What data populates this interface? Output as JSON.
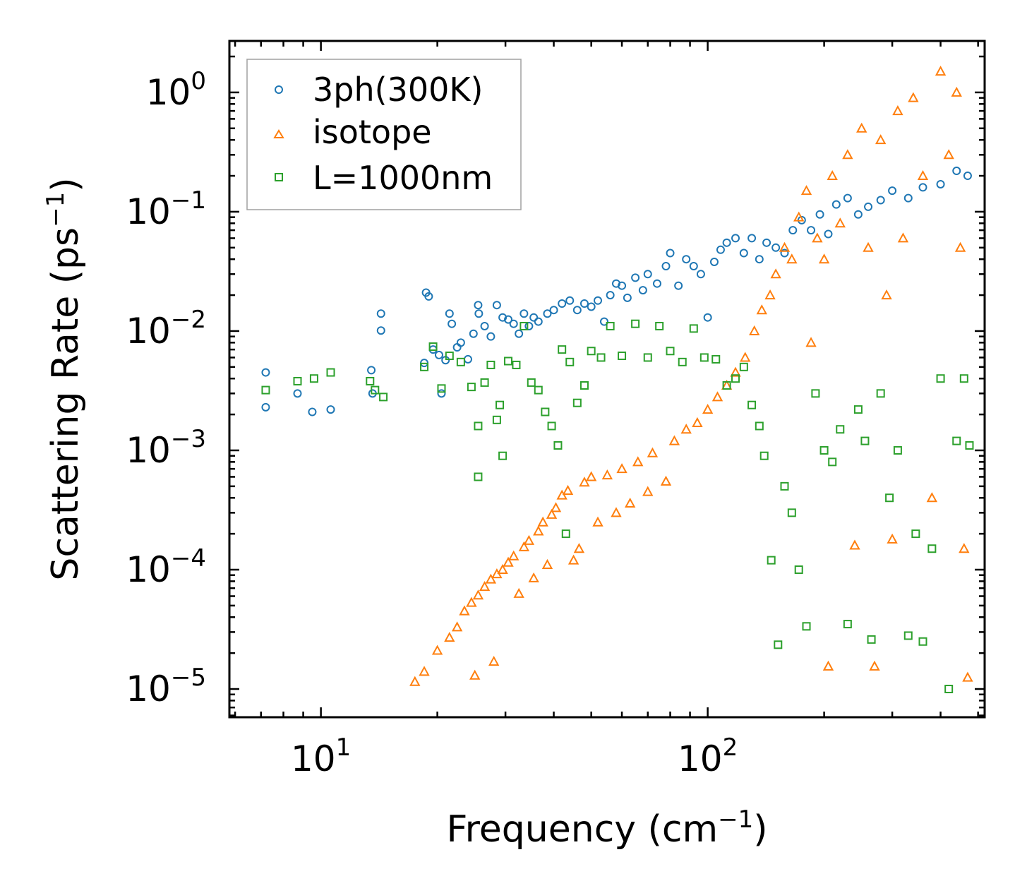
{
  "chart_data": {
    "type": "scatter",
    "title": "",
    "xlabel": {
      "base": "Frequency (cm",
      "exp": "−1",
      "tail": ")"
    },
    "ylabel": {
      "base": "Scattering Rate (ps",
      "exp": "−1",
      "tail": ")"
    },
    "xscale": "log",
    "yscale": "log",
    "xlim": [
      5.8,
      520
    ],
    "ylim": [
      5.8e-06,
      2.7
    ],
    "x_ticks": [
      {
        "value": 10,
        "base": "10",
        "exp": "1"
      },
      {
        "value": 100,
        "base": "10",
        "exp": "2"
      }
    ],
    "y_ticks": [
      {
        "value": 1,
        "base": "10",
        "exp": "0"
      },
      {
        "value": 0.1,
        "base": "10",
        "exp": "−1"
      },
      {
        "value": 0.01,
        "base": "10",
        "exp": "−2"
      },
      {
        "value": 0.001,
        "base": "10",
        "exp": "−3"
      },
      {
        "value": 0.0001,
        "base": "10",
        "exp": "−4"
      },
      {
        "value": 1e-05,
        "base": "10",
        "exp": "−5"
      }
    ],
    "grid": false,
    "legend_position": "top-left",
    "series": [
      {
        "name": "3ph(300K)",
        "marker": "circle",
        "color": "#1f77b4",
        "points": [
          [
            7.2,
            0.0045
          ],
          [
            7.2,
            0.0023
          ],
          [
            8.7,
            0.003
          ],
          [
            9.5,
            0.0021
          ],
          [
            10.6,
            0.0022
          ],
          [
            13.5,
            0.0047
          ],
          [
            13.6,
            0.003
          ],
          [
            14.3,
            0.014
          ],
          [
            14.3,
            0.0101
          ],
          [
            18.5,
            0.0054
          ],
          [
            18.7,
            0.021
          ],
          [
            19.0,
            0.0195
          ],
          [
            19.5,
            0.007
          ],
          [
            20.2,
            0.0063
          ],
          [
            20.5,
            0.003
          ],
          [
            21.0,
            0.0057
          ],
          [
            21.5,
            0.014
          ],
          [
            21.8,
            0.0115
          ],
          [
            22.5,
            0.0073
          ],
          [
            23.0,
            0.008
          ],
          [
            24.0,
            0.0058
          ],
          [
            24.8,
            0.0095
          ],
          [
            25.5,
            0.0165
          ],
          [
            25.6,
            0.014
          ],
          [
            26.5,
            0.011
          ],
          [
            27.5,
            0.009
          ],
          [
            28.5,
            0.0165
          ],
          [
            29.5,
            0.013
          ],
          [
            30.5,
            0.0125
          ],
          [
            31.5,
            0.0115
          ],
          [
            32.5,
            0.0095
          ],
          [
            33.5,
            0.014
          ],
          [
            34.5,
            0.011
          ],
          [
            35.5,
            0.013
          ],
          [
            36.5,
            0.012
          ],
          [
            38.5,
            0.014
          ],
          [
            40.0,
            0.015
          ],
          [
            42.0,
            0.017
          ],
          [
            44.0,
            0.018
          ],
          [
            46.0,
            0.015
          ],
          [
            48.0,
            0.017
          ],
          [
            50.0,
            0.016
          ],
          [
            52.0,
            0.018
          ],
          [
            54.0,
            0.012
          ],
          [
            56.0,
            0.02
          ],
          [
            58.0,
            0.025
          ],
          [
            60.0,
            0.024
          ],
          [
            62.0,
            0.019
          ],
          [
            65.0,
            0.028
          ],
          [
            68.0,
            0.022
          ],
          [
            70.0,
            0.03
          ],
          [
            74.0,
            0.025
          ],
          [
            78.0,
            0.035
          ],
          [
            80.0,
            0.045
          ],
          [
            84.0,
            0.024
          ],
          [
            88.0,
            0.04
          ],
          [
            92.0,
            0.035
          ],
          [
            96.0,
            0.03
          ],
          [
            100.0,
            0.013
          ],
          [
            104.0,
            0.038
          ],
          [
            108.0,
            0.048
          ],
          [
            112.0,
            0.055
          ],
          [
            118.0,
            0.06
          ],
          [
            124.0,
            0.045
          ],
          [
            130.0,
            0.06
          ],
          [
            136.0,
            0.04
          ],
          [
            142.0,
            0.055
          ],
          [
            150.0,
            0.05
          ],
          [
            158.0,
            0.045
          ],
          [
            166.0,
            0.07
          ],
          [
            175.0,
            0.085
          ],
          [
            185.0,
            0.07
          ],
          [
            195.0,
            0.095
          ],
          [
            205.0,
            0.065
          ],
          [
            215.0,
            0.115
          ],
          [
            230.0,
            0.13
          ],
          [
            245.0,
            0.095
          ],
          [
            260.0,
            0.11
          ],
          [
            280.0,
            0.125
          ],
          [
            300.0,
            0.15
          ],
          [
            330.0,
            0.13
          ],
          [
            360.0,
            0.16
          ],
          [
            400.0,
            0.17
          ],
          [
            440.0,
            0.22
          ],
          [
            470.0,
            0.2
          ]
        ]
      },
      {
        "name": "isotope",
        "marker": "triangle",
        "color": "#ff7f0e",
        "points": [
          [
            17.5,
            1.15e-05
          ],
          [
            18.5,
            1.4e-05
          ],
          [
            20.0,
            2.1e-05
          ],
          [
            21.5,
            2.7e-05
          ],
          [
            22.5,
            3.3e-05
          ],
          [
            23.5,
            4.5e-05
          ],
          [
            24.5,
            5.3e-05
          ],
          [
            25.0,
            1.3e-05
          ],
          [
            25.5,
            6.1e-05
          ],
          [
            26.5,
            7.2e-05
          ],
          [
            27.5,
            8.3e-05
          ],
          [
            28.0,
            1.7e-05
          ],
          [
            28.5,
            9.2e-05
          ],
          [
            29.5,
            0.0001
          ],
          [
            30.5,
            0.000115
          ],
          [
            31.5,
            0.00013
          ],
          [
            32.5,
            6.3e-05
          ],
          [
            33.5,
            0.000155
          ],
          [
            34.5,
            0.000175
          ],
          [
            35.5,
            8.5e-05
          ],
          [
            36.5,
            0.00021
          ],
          [
            37.5,
            0.00025
          ],
          [
            38.5,
            0.00011
          ],
          [
            39.5,
            0.00029
          ],
          [
            40.5,
            0.00033
          ],
          [
            42.0,
            0.00042
          ],
          [
            43.5,
            0.00046
          ],
          [
            45.0,
            0.00012
          ],
          [
            46.5,
            0.00015
          ],
          [
            48.0,
            0.00054
          ],
          [
            50.0,
            0.0006
          ],
          [
            52.0,
            0.00025
          ],
          [
            55.0,
            0.00062
          ],
          [
            58.0,
            0.0003
          ],
          [
            60.0,
            0.0007
          ],
          [
            63.0,
            0.00036
          ],
          [
            66.0,
            0.0008
          ],
          [
            70.0,
            0.00045
          ],
          [
            72.0,
            0.00095
          ],
          [
            78.0,
            0.00055
          ],
          [
            82.0,
            0.0012
          ],
          [
            88.0,
            0.0015
          ],
          [
            94.0,
            0.0017
          ],
          [
            100.0,
            0.0022
          ],
          [
            106.0,
            0.0028
          ],
          [
            112.0,
            0.0035
          ],
          [
            118.0,
            0.0045
          ],
          [
            125.0,
            0.006
          ],
          [
            132.0,
            0.01
          ],
          [
            138.0,
            0.015
          ],
          [
            145.0,
            0.02
          ],
          [
            150.0,
            0.03
          ],
          [
            158.0,
            0.05
          ],
          [
            165.0,
            0.04
          ],
          [
            172.0,
            0.09
          ],
          [
            180.0,
            0.15
          ],
          [
            185.0,
            0.008
          ],
          [
            192.0,
            0.06
          ],
          [
            200.0,
            0.04
          ],
          [
            205.0,
            1.55e-05
          ],
          [
            210.0,
            0.2
          ],
          [
            220.0,
            0.08
          ],
          [
            230.0,
            0.3
          ],
          [
            240.0,
            0.00016
          ],
          [
            250.0,
            0.5
          ],
          [
            260.0,
            0.05
          ],
          [
            270.0,
            1.55e-05
          ],
          [
            280.0,
            0.4
          ],
          [
            290.0,
            0.02
          ],
          [
            300.0,
            0.00018
          ],
          [
            310.0,
            0.7
          ],
          [
            320.0,
            0.06
          ],
          [
            340.0,
            0.9
          ],
          [
            360.0,
            0.2
          ],
          [
            380.0,
            0.0004
          ],
          [
            400.0,
            1.5
          ],
          [
            420.0,
            0.3
          ],
          [
            440.0,
            1.0
          ],
          [
            450.0,
            0.05
          ],
          [
            460.0,
            0.00015
          ],
          [
            470.0,
            1.25e-05
          ]
        ]
      },
      {
        "name": "L=1000nm",
        "marker": "square",
        "color": "#2ca02c",
        "points": [
          [
            7.2,
            0.0032
          ],
          [
            8.7,
            0.0038
          ],
          [
            9.6,
            0.004
          ],
          [
            10.6,
            0.0045
          ],
          [
            13.4,
            0.0038
          ],
          [
            13.8,
            0.0032
          ],
          [
            14.5,
            0.0028
          ],
          [
            18.5,
            0.005
          ],
          [
            19.5,
            0.0074
          ],
          [
            20.5,
            0.0033
          ],
          [
            21.5,
            0.0062
          ],
          [
            23.0,
            0.0055
          ],
          [
            24.5,
            0.0034
          ],
          [
            25.5,
            0.0016
          ],
          [
            25.5,
            0.0006
          ],
          [
            26.5,
            0.0037
          ],
          [
            27.5,
            0.0052
          ],
          [
            28.5,
            0.0018
          ],
          [
            29.0,
            0.0024
          ],
          [
            29.5,
            0.0009
          ],
          [
            30.5,
            0.0056
          ],
          [
            32.0,
            0.0052
          ],
          [
            33.5,
            0.011
          ],
          [
            35.0,
            0.0037
          ],
          [
            36.5,
            0.0032
          ],
          [
            38.0,
            0.0021
          ],
          [
            39.5,
            0.0016
          ],
          [
            41.0,
            0.0011
          ],
          [
            42.0,
            0.007
          ],
          [
            43.0,
            0.0002
          ],
          [
            44.0,
            0.0055
          ],
          [
            46.0,
            0.0025
          ],
          [
            48.0,
            0.0035
          ],
          [
            50.0,
            0.0068
          ],
          [
            53.0,
            0.006
          ],
          [
            56.0,
            0.011
          ],
          [
            60.0,
            0.0062
          ],
          [
            65.0,
            0.0115
          ],
          [
            70.0,
            0.006
          ],
          [
            75.0,
            0.011
          ],
          [
            80.0,
            0.0068
          ],
          [
            86.0,
            0.0055
          ],
          [
            92.0,
            0.0105
          ],
          [
            98.0,
            0.006
          ],
          [
            105.0,
            0.0058
          ],
          [
            112.0,
            0.0035
          ],
          [
            118.0,
            0.004
          ],
          [
            124.0,
            0.005
          ],
          [
            130.0,
            0.0024
          ],
          [
            136.0,
            0.0016
          ],
          [
            140.0,
            0.0009
          ],
          [
            146.0,
            0.00012
          ],
          [
            152.0,
            2.35e-05
          ],
          [
            158.0,
            0.0005
          ],
          [
            165.0,
            0.0003
          ],
          [
            172.0,
            0.0001
          ],
          [
            180.0,
            3.35e-05
          ],
          [
            190.0,
            0.003
          ],
          [
            200.0,
            0.001
          ],
          [
            210.0,
            0.0008
          ],
          [
            220.0,
            0.0015
          ],
          [
            230.0,
            3.5e-05
          ],
          [
            245.0,
            0.0022
          ],
          [
            255.0,
            0.0012
          ],
          [
            265.0,
            2.6e-05
          ],
          [
            280.0,
            0.003
          ],
          [
            295.0,
            0.0004
          ],
          [
            310.0,
            0.001
          ],
          [
            330.0,
            2.8e-05
          ],
          [
            345.0,
            0.0002
          ],
          [
            360.0,
            2.5e-05
          ],
          [
            380.0,
            0.00015
          ],
          [
            400.0,
            0.004
          ],
          [
            420.0,
            1e-05
          ],
          [
            440.0,
            0.0012
          ],
          [
            460.0,
            0.004
          ],
          [
            475.0,
            0.0011
          ]
        ]
      }
    ]
  }
}
